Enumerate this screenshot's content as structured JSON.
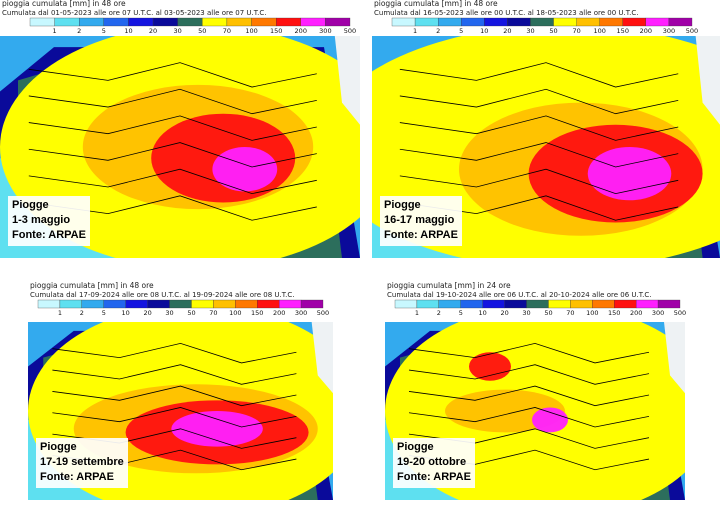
{
  "legend": {
    "ticks": [
      1,
      2,
      5,
      10,
      20,
      30,
      50,
      70,
      100,
      150,
      200,
      300,
      500
    ],
    "colors": [
      "#c8f8ff",
      "#5ee0f0",
      "#33aaee",
      "#2266ee",
      "#1414e0",
      "#0a0a9a",
      "#2c6e5c",
      "#ffff00",
      "#ffc000",
      "#ff7800",
      "#ff1010",
      "#ff20ff",
      "#a000a8"
    ]
  },
  "panels": [
    {
      "title": "pioggia cumulata [mm] in 48 ore",
      "subtitle": "Cumulata dal 01-05-2023 alle ore 07 U.T.C. al 03-05-2023 alle ore 07 U.T.C.",
      "label": [
        "Piogge",
        "1-3 maggio",
        "Fonte: ARPAE"
      ]
    },
    {
      "title": "pioggia cumulata [mm] in 48 ore",
      "subtitle": "Cumulata dal 16-05-2023 alle ore 00 U.T.C. al 18-05-2023 alle ore 00 U.T.C.",
      "label": [
        "Piogge",
        "16-17 maggio",
        "Fonte: ARPAE"
      ]
    },
    {
      "title": "pioggia cumulata [mm] in 48 ore",
      "subtitle": "Cumulata dal 17-09-2024 alle ore 08 U.T.C. al 19-09-2024 alle ore 08 U.T.C.",
      "label": [
        "Piogge",
        "17-19 settembre",
        "Fonte: ARPAE"
      ]
    },
    {
      "title": "pioggia cumulata [mm] in 24 ore",
      "subtitle": "Cumulata dal 19-10-2024 alle ore 06 U.T.C. al 20-10-2024 alle ore 06 U.T.C.",
      "label": [
        "Piogge",
        "19-20 ottobre",
        "Fonte: ARPAE"
      ]
    }
  ]
}
